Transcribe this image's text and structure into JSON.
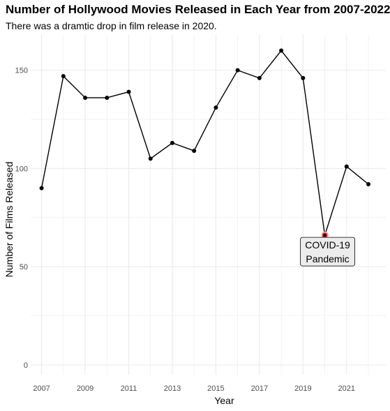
{
  "chart_data": {
    "type": "line",
    "title": "Number of Hollywood Movies Released in Each Year from 2007-2022",
    "subtitle": "There was a dramtic drop in film release in 2020.",
    "xlabel": "Year",
    "ylabel": "Number of Films Released",
    "x": [
      2007,
      2008,
      2009,
      2010,
      2011,
      2012,
      2013,
      2014,
      2015,
      2016,
      2017,
      2018,
      2019,
      2020,
      2021,
      2022
    ],
    "values": [
      90,
      147,
      136,
      136,
      139,
      105,
      113,
      109,
      131,
      150,
      146,
      160,
      146,
      66,
      101,
      92
    ],
    "x_ticks": [
      "2007",
      "2009",
      "2011",
      "2013",
      "2015",
      "2017",
      "2019",
      "2021"
    ],
    "y_ticks": [
      "0",
      "50",
      "100",
      "150"
    ],
    "xlim": [
      2006.5,
      2022.8
    ],
    "ylim": [
      -5,
      168
    ],
    "grid": true,
    "highlight": {
      "x": 2020,
      "y": 66,
      "color": "#e41a1c"
    },
    "annotation": {
      "x": 2020,
      "y": 66,
      "lines": [
        "COVID-19",
        "Pandemic"
      ]
    },
    "line_color": "#000000",
    "grid_color": "#ebebeb"
  }
}
